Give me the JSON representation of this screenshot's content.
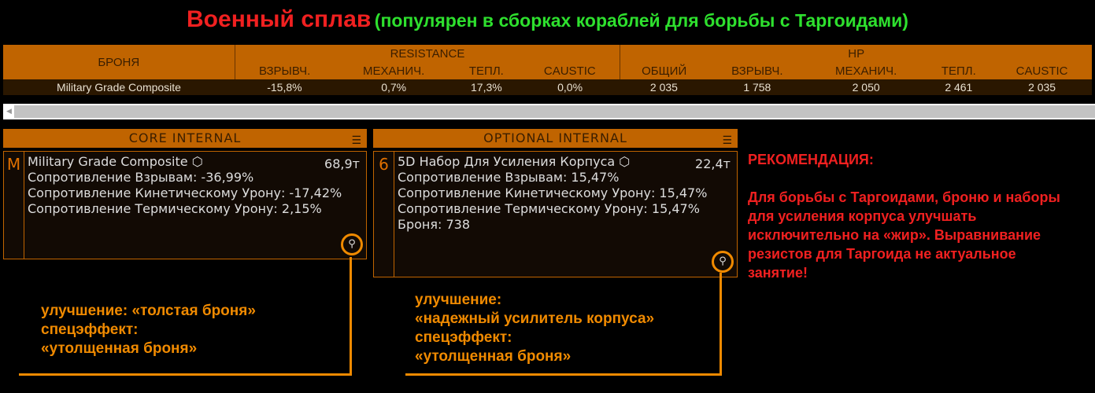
{
  "title": {
    "main": "Военный сплав",
    "sub": "(популярен в сборках кораблей для борьбы с Таргоидами)"
  },
  "table": {
    "armor_header": "БРОНЯ",
    "resistance_header": "RESISTANCE",
    "hp_header": "HP",
    "columns": [
      "ВЗРЫВЧ.",
      "МЕХАНИЧ.",
      "ТЕПЛ.",
      "CAUSTIC",
      "ОБЩИЙ",
      "ВЗРЫВЧ.",
      "МЕХАНИЧ.",
      "ТЕПЛ.",
      "CAUSTIC"
    ],
    "row": {
      "name": "Military Grade Composite",
      "values": [
        "-15,8%",
        "0,7%",
        "17,3%",
        "0,0%",
        "2 035",
        "1 758",
        "2 050",
        "2 461",
        "2 035"
      ]
    }
  },
  "core": {
    "header": "CORE INTERNAL",
    "class": "M",
    "name": "Military Grade Composite",
    "mass": "68,9т",
    "stats": [
      "Сопротивление Взрывам: -36,99%",
      "Сопротивление Кинетическому Урону: -17,42%",
      "Сопротивление Термическому Урону: 2,15%"
    ]
  },
  "optional": {
    "header": "OPTIONAL INTERNAL",
    "class": "6",
    "name": "5D Набор Для Усиления Корпуса",
    "mass": "22,4т",
    "stats": [
      "Сопротивление Взрывам: 15,47%",
      "Сопротивление Кинетическому Урону: 15,47%",
      "Сопротивление Термическому Урону: 15,47%",
      "Броня: 738"
    ]
  },
  "note_core": [
    "улучшение: «толстая броня»",
    "спецэффект:",
    "«утолщенная броня»"
  ],
  "note_optional": [
    "улучшение:",
    "«надежный усилитель корпуса»",
    "спецэффект:",
    "«утолщенная броня»"
  ],
  "recommendation": {
    "title": "РЕКОМЕНДАЦИЯ:",
    "text": "Для борьбы с Таргоидами, броню и наборы для усиления корпуса улучшать исключительно на «жир». Выравнивание резистов для Таргоида не актуальное занятие!"
  },
  "colors": {
    "accent": "#c06400",
    "highlight": "#f08a00",
    "red": "#f02020",
    "green": "#2ee02e"
  }
}
